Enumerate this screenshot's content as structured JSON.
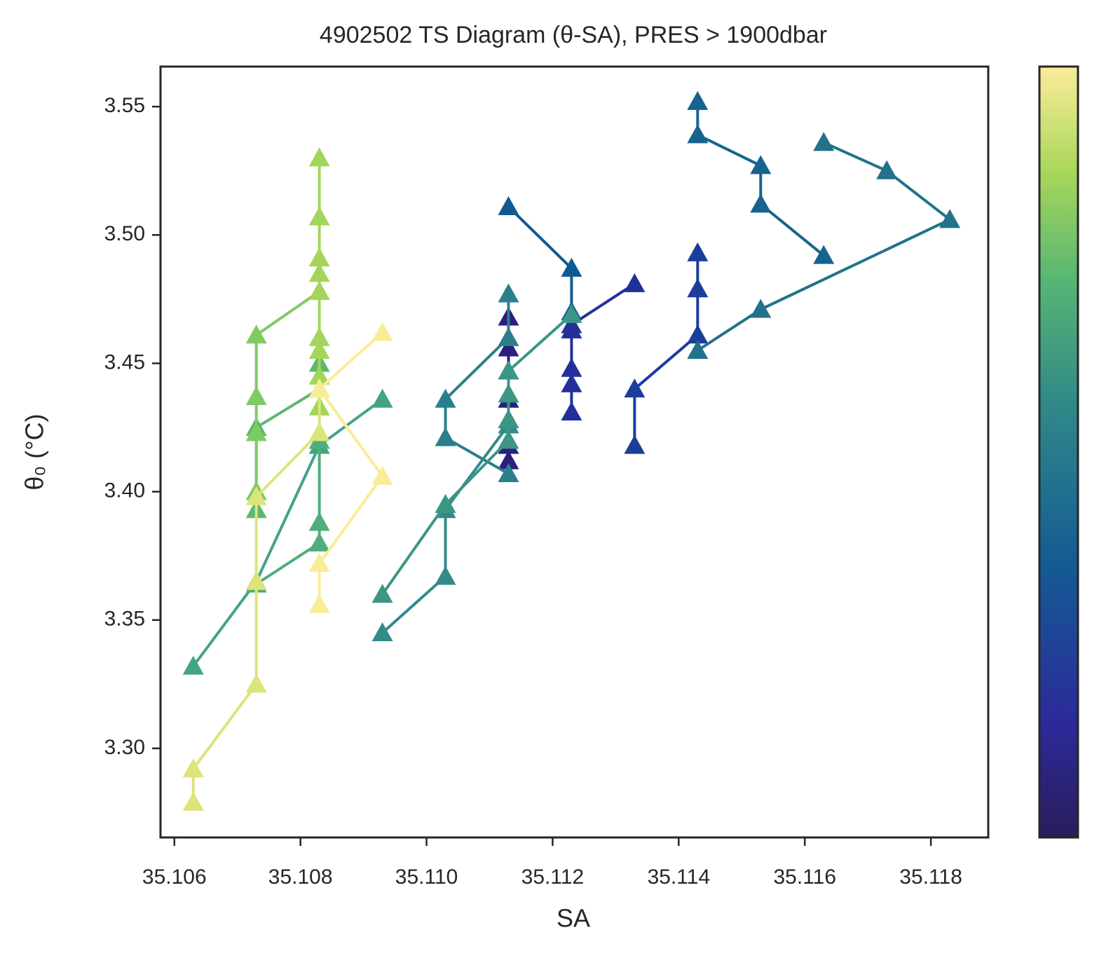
{
  "chart_data": {
    "type": "line",
    "title": "4902502 TS Diagram (θ-SA), PRES > 1900dbar",
    "x_label": "SA",
    "y_label": "θ₀ (°C)",
    "xlim": [
      35.10578,
      35.11891
    ],
    "ylim": [
      3.2653,
      3.5656
    ],
    "xticks": [
      35.106,
      35.108,
      {
        "value": 35.11,
        "label": "35.110"
      },
      35.112,
      35.114,
      35.116,
      35.118
    ],
    "yticks": [
      {
        "value": 3.3,
        "label": "3.30"
      },
      3.35,
      {
        "value": 3.4,
        "label": "3.40"
      },
      3.45,
      {
        "value": 3.5,
        "label": "3.50"
      },
      3.55
    ],
    "marker": "triangle",
    "series": [
      {
        "color": "#2b1f7e",
        "x": [
          35.1113,
          35.1113,
          35.1113,
          35.1113,
          35.1113,
          35.1113,
          35.1113
        ],
        "values": [
          3.468,
          3.456,
          3.447,
          3.436,
          3.428,
          3.418,
          3.412
        ]
      },
      {
        "color": "#23309a",
        "x": [
          35.1133,
          35.1123,
          35.1123,
          35.1123,
          35.1123,
          35.1123
        ],
        "values": [
          3.481,
          3.465,
          3.463,
          3.448,
          3.442,
          3.431
        ]
      },
      {
        "color": "#1b3d9c",
        "x": [
          35.1143,
          35.1143,
          35.1143,
          35.1133,
          35.1133
        ],
        "values": [
          3.493,
          3.479,
          3.461,
          3.44,
          3.418
        ]
      },
      {
        "color": "#105a94",
        "x": [
          35.1113,
          35.1123,
          35.1123
        ],
        "values": [
          3.511,
          3.487,
          3.47
        ]
      },
      {
        "color": "#16648e",
        "x": [
          35.1143,
          35.1143,
          35.1153,
          35.1153,
          35.1163
        ],
        "values": [
          3.552,
          3.539,
          3.527,
          3.512,
          3.492
        ]
      },
      {
        "color": "#21728a",
        "x": [
          35.1163,
          35.1173,
          35.1183,
          35.1153,
          35.1143
        ],
        "values": [
          3.536,
          3.525,
          3.506,
          3.471,
          3.455
        ]
      },
      {
        "color": "#2b7f8c",
        "x": [
          35.1113,
          35.1113,
          35.1103,
          35.1103,
          35.1113
        ],
        "values": [
          3.477,
          3.46,
          3.436,
          3.421,
          3.407
        ]
      },
      {
        "color": "#338a8a",
        "x": [
          35.1093,
          35.1103,
          35.1103,
          35.1113
        ],
        "values": [
          3.345,
          3.367,
          3.393,
          3.426
        ]
      },
      {
        "color": "#3b9686",
        "x": [
          35.1093,
          35.1103,
          35.1113,
          35.1113,
          35.1113,
          35.1113,
          35.1123
        ],
        "values": [
          3.36,
          3.395,
          3.42,
          3.428,
          3.438,
          3.447,
          3.469
        ]
      },
      {
        "color": "#44a383",
        "x": [
          35.1093,
          35.1083,
          35.1073,
          35.1063
        ],
        "values": [
          3.436,
          3.418,
          3.365,
          3.332
        ]
      },
      {
        "color": "#4fae7a",
        "x": [
          35.1083,
          35.1083,
          35.1083,
          35.1073
        ],
        "values": [
          3.42,
          3.388,
          3.38,
          3.364
        ]
      },
      {
        "color": "#5cb870",
        "x": [
          35.1073,
          35.1073,
          35.1073,
          35.1083,
          35.1083
        ],
        "values": [
          3.4,
          3.393,
          3.425,
          3.44,
          3.45
        ]
      },
      {
        "color": "#7ecb64",
        "x": [
          35.1073,
          35.1073,
          35.1073,
          35.1073,
          35.1083
        ],
        "values": [
          3.4,
          3.423,
          3.437,
          3.461,
          3.478
        ]
      },
      {
        "color": "#a3d55a",
        "x": [
          35.1083,
          35.1083,
          35.1083,
          35.1083,
          35.1083,
          35.1083,
          35.1083,
          35.1083,
          35.1083
        ],
        "values": [
          3.53,
          3.507,
          3.491,
          3.485,
          3.478,
          3.46,
          3.455,
          3.445,
          3.433
        ]
      },
      {
        "color": "#dde47a",
        "x": [
          35.1063,
          35.1063,
          35.1073,
          35.1073,
          35.1073,
          35.1083,
          35.1083
        ],
        "values": [
          3.279,
          3.292,
          3.325,
          3.365,
          3.398,
          3.423,
          3.44
        ]
      },
      {
        "color": "#f9ec96",
        "x": [
          35.1093,
          35.1083,
          35.1093,
          35.1083,
          35.1083
        ],
        "values": [
          3.462,
          3.44,
          3.406,
          3.372,
          3.356
        ]
      }
    ]
  }
}
